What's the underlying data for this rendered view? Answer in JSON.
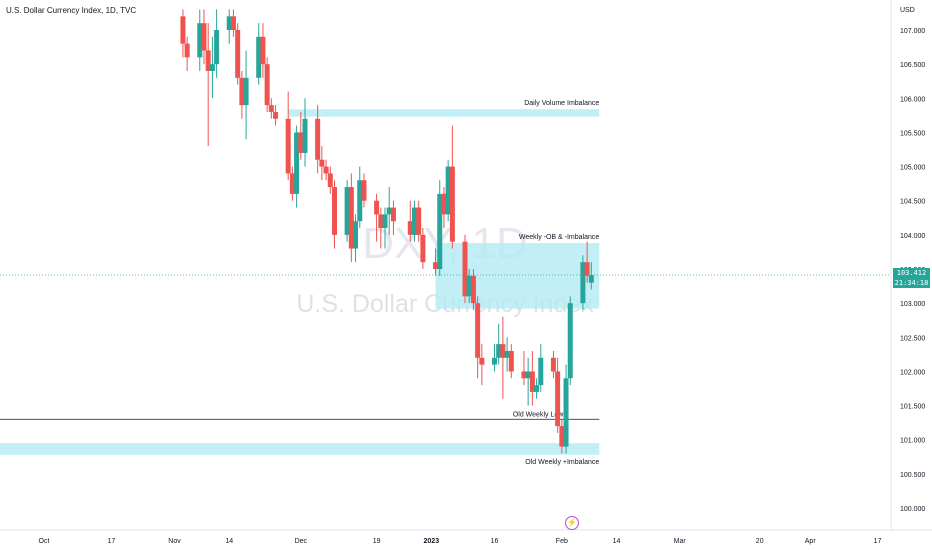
{
  "header": {
    "symbol_line": "U.S. Dollar Currency Index, 1D, TVC"
  },
  "watermark": {
    "ticker": "DXY, 1D",
    "name": "U.S. Dollar Currency Index"
  },
  "axis": {
    "currency_label": "USD",
    "price_ticks": [
      "107.000",
      "106.500",
      "106.000",
      "105.500",
      "105.000",
      "104.500",
      "104.000",
      "103.500",
      "103.000",
      "102.500",
      "102.000",
      "101.500",
      "101.000",
      "100.500",
      "100.000"
    ],
    "date_ticks": [
      "Oct",
      "17",
      "Nov",
      "14",
      "Dec",
      "19",
      "2023",
      "16",
      "Feb",
      "14",
      "Mar",
      "20",
      "Apr",
      "17"
    ]
  },
  "last_price": {
    "value": "103.412",
    "countdown": "21:34:18"
  },
  "colors": {
    "up": "#26a69a",
    "down": "#ef5350",
    "zone": "#b2ebf2",
    "last_price_line": "#26a69a"
  },
  "chart_data": {
    "type": "candlestick",
    "title": "U.S. Dollar Currency Index, 1D, TVC",
    "ylabel": "USD",
    "ylim": [
      99.8,
      107.3
    ],
    "candles": [
      {
        "date": "2022-11-03",
        "o": 107.2,
        "h": 107.3,
        "l": 106.6,
        "c": 106.8
      },
      {
        "date": "2022-11-04",
        "o": 106.8,
        "h": 106.9,
        "l": 106.4,
        "c": 106.6
      },
      {
        "date": "2022-11-07",
        "o": 106.6,
        "h": 107.3,
        "l": 106.4,
        "c": 107.1
      },
      {
        "date": "2022-11-08",
        "o": 107.1,
        "h": 107.3,
        "l": 106.5,
        "c": 106.7
      },
      {
        "date": "2022-11-09",
        "o": 106.7,
        "h": 107.1,
        "l": 105.3,
        "c": 106.4
      },
      {
        "date": "2022-11-10",
        "o": 106.4,
        "h": 106.9,
        "l": 106.0,
        "c": 106.5
      },
      {
        "date": "2022-11-11",
        "o": 106.5,
        "h": 107.3,
        "l": 106.3,
        "c": 107.0
      },
      {
        "date": "2022-11-14",
        "o": 107.0,
        "h": 107.3,
        "l": 106.8,
        "c": 107.2
      },
      {
        "date": "2022-11-15",
        "o": 107.2,
        "h": 107.3,
        "l": 106.9,
        "c": 107.0
      },
      {
        "date": "2022-11-16",
        "o": 107.0,
        "h": 107.1,
        "l": 106.2,
        "c": 106.3
      },
      {
        "date": "2022-11-17",
        "o": 106.3,
        "h": 106.4,
        "l": 105.7,
        "c": 105.9
      },
      {
        "date": "2022-11-18",
        "o": 105.9,
        "h": 106.7,
        "l": 105.4,
        "c": 106.3
      },
      {
        "date": "2022-11-21",
        "o": 106.3,
        "h": 107.1,
        "l": 106.2,
        "c": 106.9
      },
      {
        "date": "2022-11-22",
        "o": 106.9,
        "h": 107.1,
        "l": 106.3,
        "c": 106.5
      },
      {
        "date": "2022-11-23",
        "o": 106.5,
        "h": 106.6,
        "l": 105.8,
        "c": 105.9
      },
      {
        "date": "2022-11-24",
        "o": 105.9,
        "h": 106.0,
        "l": 105.7,
        "c": 105.8
      },
      {
        "date": "2022-11-25",
        "o": 105.8,
        "h": 105.9,
        "l": 105.6,
        "c": 105.7
      },
      {
        "date": "2022-11-28",
        "o": 105.7,
        "h": 106.1,
        "l": 104.8,
        "c": 104.9
      },
      {
        "date": "2022-11-29",
        "o": 104.9,
        "h": 105.0,
        "l": 104.5,
        "c": 104.6
      },
      {
        "date": "2022-11-30",
        "o": 104.6,
        "h": 105.6,
        "l": 104.4,
        "c": 105.5
      },
      {
        "date": "2022-12-01",
        "o": 105.5,
        "h": 105.8,
        "l": 105.1,
        "c": 105.2
      },
      {
        "date": "2022-12-02",
        "o": 105.2,
        "h": 106.0,
        "l": 105.0,
        "c": 105.7
      },
      {
        "date": "2022-12-05",
        "o": 105.7,
        "h": 105.9,
        "l": 104.9,
        "c": 105.1
      },
      {
        "date": "2022-12-06",
        "o": 105.1,
        "h": 105.3,
        "l": 104.8,
        "c": 105.0
      },
      {
        "date": "2022-12-07",
        "o": 105.0,
        "h": 105.1,
        "l": 104.8,
        "c": 104.9
      },
      {
        "date": "2022-12-08",
        "o": 104.9,
        "h": 105.0,
        "l": 104.6,
        "c": 104.7
      },
      {
        "date": "2022-12-09",
        "o": 104.7,
        "h": 104.8,
        "l": 103.8,
        "c": 104.0
      },
      {
        "date": "2022-12-12",
        "o": 104.0,
        "h": 104.8,
        "l": 103.9,
        "c": 104.7
      },
      {
        "date": "2022-12-13",
        "o": 104.7,
        "h": 104.9,
        "l": 103.6,
        "c": 103.8
      },
      {
        "date": "2022-12-14",
        "o": 103.8,
        "h": 104.3,
        "l": 103.6,
        "c": 104.2
      },
      {
        "date": "2022-12-15",
        "o": 104.2,
        "h": 105.0,
        "l": 104.1,
        "c": 104.8
      },
      {
        "date": "2022-12-16",
        "o": 104.8,
        "h": 104.9,
        "l": 104.4,
        "c": 104.5
      },
      {
        "date": "2022-12-19",
        "o": 104.5,
        "h": 104.6,
        "l": 103.9,
        "c": 104.3
      },
      {
        "date": "2022-12-20",
        "o": 104.3,
        "h": 104.4,
        "l": 103.8,
        "c": 104.1
      },
      {
        "date": "2022-12-21",
        "o": 104.1,
        "h": 104.4,
        "l": 103.8,
        "c": 104.3
      },
      {
        "date": "2022-12-22",
        "o": 104.3,
        "h": 104.7,
        "l": 104.0,
        "c": 104.4
      },
      {
        "date": "2022-12-23",
        "o": 104.4,
        "h": 104.5,
        "l": 104.0,
        "c": 104.2
      },
      {
        "date": "2022-12-27",
        "o": 104.2,
        "h": 104.5,
        "l": 103.9,
        "c": 104.0
      },
      {
        "date": "2022-12-28",
        "o": 104.0,
        "h": 104.5,
        "l": 103.9,
        "c": 104.4
      },
      {
        "date": "2022-12-29",
        "o": 104.4,
        "h": 104.5,
        "l": 103.9,
        "c": 104.0
      },
      {
        "date": "2022-12-30",
        "o": 104.0,
        "h": 104.1,
        "l": 103.5,
        "c": 103.6
      },
      {
        "date": "2023-01-02",
        "o": 103.6,
        "h": 103.8,
        "l": 103.4,
        "c": 103.5
      },
      {
        "date": "2023-01-03",
        "o": 103.5,
        "h": 104.8,
        "l": 103.4,
        "c": 104.6
      },
      {
        "date": "2023-01-04",
        "o": 104.6,
        "h": 104.7,
        "l": 104.1,
        "c": 104.3
      },
      {
        "date": "2023-01-05",
        "o": 104.3,
        "h": 105.1,
        "l": 104.2,
        "c": 105.0
      },
      {
        "date": "2023-01-06",
        "o": 105.0,
        "h": 105.6,
        "l": 103.8,
        "c": 103.9
      },
      {
        "date": "2023-01-09",
        "o": 103.9,
        "h": 104.0,
        "l": 103.0,
        "c": 103.1
      },
      {
        "date": "2023-01-10",
        "o": 103.1,
        "h": 103.5,
        "l": 103.0,
        "c": 103.4
      },
      {
        "date": "2023-01-11",
        "o": 103.4,
        "h": 103.5,
        "l": 102.9,
        "c": 103.0
      },
      {
        "date": "2023-01-12",
        "o": 103.0,
        "h": 103.1,
        "l": 101.9,
        "c": 102.2
      },
      {
        "date": "2023-01-13",
        "o": 102.2,
        "h": 102.4,
        "l": 101.8,
        "c": 102.1
      },
      {
        "date": "2023-01-16",
        "o": 102.1,
        "h": 102.4,
        "l": 102.0,
        "c": 102.2
      },
      {
        "date": "2023-01-17",
        "o": 102.2,
        "h": 102.7,
        "l": 102.1,
        "c": 102.4
      },
      {
        "date": "2023-01-18",
        "o": 102.4,
        "h": 102.8,
        "l": 101.6,
        "c": 102.2
      },
      {
        "date": "2023-01-19",
        "o": 102.2,
        "h": 102.5,
        "l": 102.0,
        "c": 102.3
      },
      {
        "date": "2023-01-20",
        "o": 102.3,
        "h": 102.4,
        "l": 101.9,
        "c": 102.0
      },
      {
        "date": "2023-01-23",
        "o": 102.0,
        "h": 102.3,
        "l": 101.8,
        "c": 101.9
      },
      {
        "date": "2023-01-24",
        "o": 101.9,
        "h": 102.2,
        "l": 101.5,
        "c": 102.0
      },
      {
        "date": "2023-01-25",
        "o": 102.0,
        "h": 102.3,
        "l": 101.5,
        "c": 101.7
      },
      {
        "date": "2023-01-26",
        "o": 101.7,
        "h": 101.9,
        "l": 101.6,
        "c": 101.8
      },
      {
        "date": "2023-01-27",
        "o": 101.8,
        "h": 102.4,
        "l": 101.7,
        "c": 102.2
      },
      {
        "date": "2023-01-30",
        "o": 102.2,
        "h": 102.3,
        "l": 101.9,
        "c": 102.0
      },
      {
        "date": "2023-01-31",
        "o": 102.0,
        "h": 102.2,
        "l": 101.1,
        "c": 101.2
      },
      {
        "date": "2023-02-01",
        "o": 101.2,
        "h": 101.3,
        "l": 100.8,
        "c": 100.9
      },
      {
        "date": "2023-02-02",
        "o": 100.9,
        "h": 102.1,
        "l": 100.8,
        "c": 101.9
      },
      {
        "date": "2023-02-03",
        "o": 101.9,
        "h": 103.1,
        "l": 101.8,
        "c": 103.0
      },
      {
        "date": "2023-02-06",
        "o": 103.0,
        "h": 103.7,
        "l": 102.9,
        "c": 103.6
      },
      {
        "date": "2023-02-07",
        "o": 103.6,
        "h": 103.9,
        "l": 103.3,
        "c": 103.4
      },
      {
        "date": "2023-02-08",
        "o": 103.3,
        "h": 103.6,
        "l": 103.2,
        "c": 103.412
      }
    ],
    "zones": [
      {
        "label": "Daily Volume Imbalance",
        "from": "2022-11-28",
        "to": "2023-02-08",
        "low": 105.73,
        "high": 105.84
      },
      {
        "label": "Weekly -OB & -Imbalance",
        "from": "2023-01-02",
        "to": "2023-02-08",
        "low": 102.92,
        "high": 103.88
      },
      {
        "label": "Old Weekly +Imbalance",
        "from": "2022-09-20",
        "to": "2023-02-08",
        "low": 100.78,
        "high": 100.95
      }
    ],
    "lines": [
      {
        "label": "Old Weekly Low",
        "from": "2022-09-20",
        "to": "2023-02-08",
        "value": 101.3
      }
    ]
  }
}
